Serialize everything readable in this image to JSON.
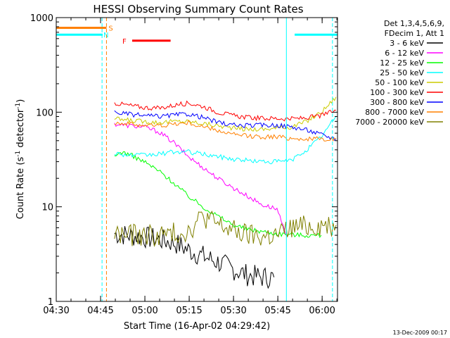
{
  "chart_data": {
    "type": "line",
    "title": "HESSI Observing Summary Count Rates",
    "xlabel": "Start Time (16-Apr-02 04:29:42)",
    "ylabel": "Count Rate (s⁻¹ detector⁻¹)",
    "ylabel_parts": [
      "Count Rate (s",
      "-1",
      " detector",
      "-1",
      ")"
    ],
    "y_scale": "log",
    "ylim": [
      1,
      1000
    ],
    "xlim_minutes": [
      0.3,
      95.5
    ],
    "x_ticks": [
      {
        "label": "04:30",
        "minute": 0.3
      },
      {
        "label": "04:45",
        "minute": 15.3
      },
      {
        "label": "05:00",
        "minute": 30.3
      },
      {
        "label": "05:15",
        "minute": 45.3
      },
      {
        "label": "05:30",
        "minute": 60.3
      },
      {
        "label": "05:45",
        "minute": 75.3
      },
      {
        "label": "06:00",
        "minute": 90.3
      }
    ],
    "y_ticks": [
      {
        "label": "1",
        "value": 1
      },
      {
        "label": "10",
        "value": 10
      },
      {
        "label": "100",
        "value": 100
      },
      {
        "label": "1000",
        "value": 1000
      }
    ],
    "legend_header": [
      "Det 1,3,4,5,6,9,",
      "FDecim 1, Att 1"
    ],
    "series": [
      {
        "name": "3 - 6 keV",
        "color": "#000000",
        "points": [
          [
            20,
            5.2
          ],
          [
            30,
            4.8
          ],
          [
            40,
            4.2
          ],
          [
            45,
            3.5
          ],
          [
            50,
            3.0
          ],
          [
            55,
            2.6
          ],
          [
            60,
            2.2
          ],
          [
            65,
            1.9
          ],
          [
            70,
            1.8
          ],
          [
            74,
            1.8
          ]
        ]
      },
      {
        "name": "6 - 12 keV",
        "color": "#ff00ff",
        "points": [
          [
            20,
            75
          ],
          [
            25,
            72
          ],
          [
            30,
            70
          ],
          [
            35,
            62
          ],
          [
            40,
            48
          ],
          [
            45,
            34
          ],
          [
            50,
            26
          ],
          [
            55,
            20
          ],
          [
            60,
            16
          ],
          [
            65,
            13
          ],
          [
            70,
            10.5
          ],
          [
            75,
            9.5
          ],
          [
            78,
            5
          ]
        ]
      },
      {
        "name": "12 - 25 keV",
        "color": "#00ff00",
        "points": [
          [
            20,
            33
          ],
          [
            22,
            38
          ],
          [
            25,
            36
          ],
          [
            30,
            30
          ],
          [
            35,
            24
          ],
          [
            40,
            18
          ],
          [
            45,
            13
          ],
          [
            50,
            10
          ],
          [
            55,
            8
          ],
          [
            60,
            6.5
          ],
          [
            65,
            5.8
          ],
          [
            70,
            5.5
          ],
          [
            75,
            5.2
          ],
          [
            80,
            5.1
          ],
          [
            85,
            5.0
          ],
          [
            90,
            5.0
          ]
        ]
      },
      {
        "name": "25 - 50 keV",
        "color": "#00ffff",
        "points": [
          [
            20,
            37
          ],
          [
            25,
            35
          ],
          [
            30,
            35
          ],
          [
            35,
            36
          ],
          [
            40,
            38
          ],
          [
            45,
            38
          ],
          [
            50,
            36
          ],
          [
            55,
            34
          ],
          [
            60,
            32
          ],
          [
            65,
            31
          ],
          [
            70,
            30
          ],
          [
            75,
            30
          ],
          [
            80,
            31
          ],
          [
            85,
            40
          ],
          [
            90,
            55
          ],
          [
            95,
            90
          ]
        ]
      },
      {
        "name": "50 - 100 keV",
        "color": "#cccc00",
        "points": [
          [
            20,
            85
          ],
          [
            25,
            82
          ],
          [
            30,
            80
          ],
          [
            35,
            78
          ],
          [
            40,
            80
          ],
          [
            45,
            80
          ],
          [
            50,
            76
          ],
          [
            55,
            72
          ],
          [
            60,
            68
          ],
          [
            65,
            66
          ],
          [
            70,
            66
          ],
          [
            75,
            68
          ],
          [
            80,
            70
          ],
          [
            85,
            80
          ],
          [
            90,
            100
          ],
          [
            95,
            145
          ]
        ]
      },
      {
        "name": "100 - 300 keV",
        "color": "#ff0000",
        "points": [
          [
            20,
            125
          ],
          [
            25,
            118
          ],
          [
            30,
            112
          ],
          [
            35,
            110
          ],
          [
            40,
            118
          ],
          [
            45,
            125
          ],
          [
            50,
            115
          ],
          [
            55,
            100
          ],
          [
            60,
            92
          ],
          [
            65,
            88
          ],
          [
            70,
            86
          ],
          [
            75,
            86
          ],
          [
            80,
            85
          ],
          [
            85,
            87
          ],
          [
            90,
            92
          ],
          [
            95,
            105
          ]
        ]
      },
      {
        "name": "300 - 800 keV",
        "color": "#0000ff",
        "points": [
          [
            20,
            100
          ],
          [
            25,
            95
          ],
          [
            30,
            92
          ],
          [
            35,
            90
          ],
          [
            40,
            93
          ],
          [
            45,
            96
          ],
          [
            50,
            88
          ],
          [
            55,
            78
          ],
          [
            60,
            73
          ],
          [
            65,
            72
          ],
          [
            70,
            73
          ],
          [
            75,
            73
          ],
          [
            80,
            70
          ],
          [
            85,
            65
          ],
          [
            90,
            58
          ],
          [
            95,
            52
          ]
        ]
      },
      {
        "name": "800 - 7000 keV",
        "color": "#ff8000",
        "points": [
          [
            20,
            78
          ],
          [
            25,
            75
          ],
          [
            30,
            73
          ],
          [
            35,
            72
          ],
          [
            40,
            75
          ],
          [
            45,
            77
          ],
          [
            50,
            70
          ],
          [
            55,
            64
          ],
          [
            60,
            58
          ],
          [
            65,
            56
          ],
          [
            70,
            55
          ],
          [
            75,
            55
          ],
          [
            80,
            53
          ],
          [
            85,
            52
          ],
          [
            90,
            52
          ],
          [
            95,
            52
          ]
        ]
      },
      {
        "name": "7000 - 20000 keV",
        "color": "#808000",
        "points": [
          [
            20,
            5.2
          ],
          [
            25,
            5.0
          ],
          [
            30,
            5.0
          ],
          [
            35,
            5.0
          ],
          [
            40,
            5.2
          ],
          [
            45,
            5.6
          ],
          [
            50,
            8
          ],
          [
            55,
            6.5
          ],
          [
            60,
            5.6
          ],
          [
            65,
            5.0
          ],
          [
            70,
            4.8
          ],
          [
            75,
            5.0
          ],
          [
            80,
            6.0
          ],
          [
            85,
            6.2
          ],
          [
            90,
            6.4
          ],
          [
            95,
            6.4
          ]
        ]
      }
    ],
    "flags": {
      "saa": {
        "label": "S",
        "color": "#ff8000",
        "start": 0.3,
        "end": 17.3,
        "y_value": 780
      },
      "night": {
        "label": "N",
        "color": "#00ffff",
        "segments": [
          [
            0.3,
            16.0
          ],
          [
            81.0,
            95.5
          ]
        ],
        "y_value": 660
      },
      "flare": {
        "label": "F",
        "color": "#ff0000",
        "start": 26.0,
        "end": 39.0,
        "y_value": 570
      }
    },
    "attenuator_lines": [
      {
        "minute": 15.8,
        "color": "#00ffff",
        "style": "dashed"
      },
      {
        "minute": 17.3,
        "color": "#ff8000",
        "style": "dashed"
      },
      {
        "minute": 78.2,
        "color": "#00ffff",
        "style": "solid"
      },
      {
        "minute": 93.8,
        "color": "#00ffff",
        "style": "dashed"
      }
    ],
    "footer_date": "13-Dec-2009 00:17"
  }
}
